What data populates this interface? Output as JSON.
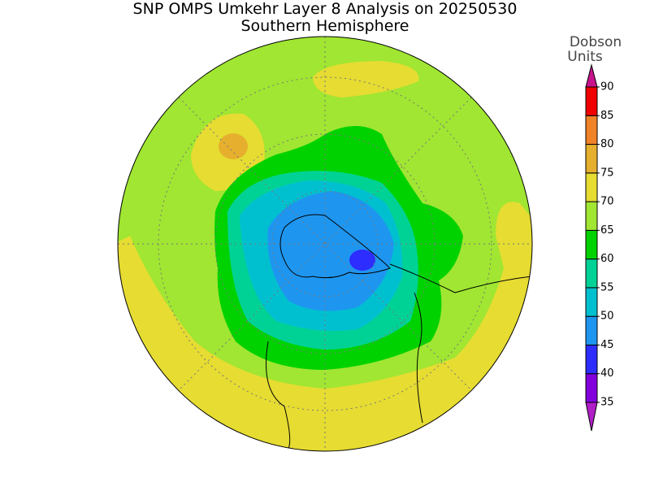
{
  "header": {
    "title": "SNP OMPS Umkehr Layer 8 Analysis on 20250530",
    "subtitle": "Southern Hemisphere"
  },
  "colorbar": {
    "label_lines": [
      "Dobson",
      "Units"
    ],
    "levels": [
      35,
      40,
      45,
      50,
      55,
      60,
      65,
      70,
      75,
      80,
      85,
      90
    ],
    "colors": [
      "#b01ec8",
      "#8200dc",
      "#2d2dff",
      "#1e96f0",
      "#00c0d0",
      "#00d296",
      "#00d200",
      "#a0e632",
      "#e6dc32",
      "#e6af2d",
      "#f08228",
      "#f00000",
      "#c8148c"
    ]
  }
}
